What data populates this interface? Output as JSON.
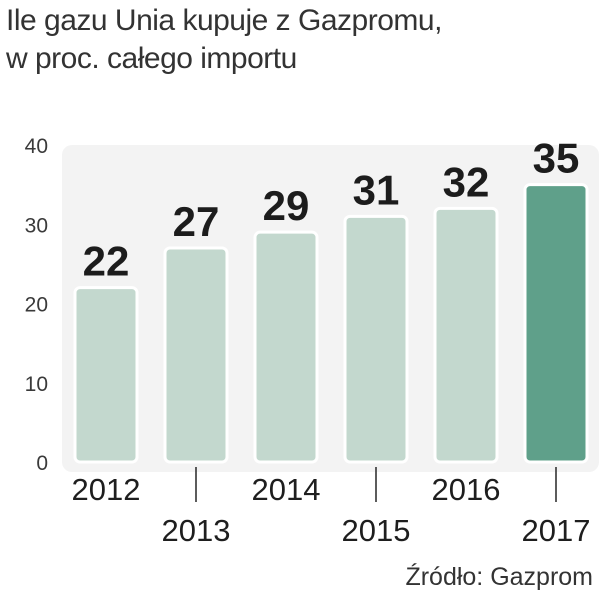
{
  "title_line1": "Ile gazu Unia kupuje z Gazpromu,",
  "title_line2": "w proc. całego importu",
  "source": "Źródło: Gazprom",
  "colors": {
    "bar": "#c3d8ce",
    "bar_highlight": "#5fa08a",
    "background_panel": "#f3f3f3"
  },
  "chart_data": {
    "type": "bar",
    "categories": [
      "2012",
      "2013",
      "2014",
      "2015",
      "2016",
      "2017"
    ],
    "values": [
      22,
      27,
      29,
      31,
      32,
      35
    ],
    "highlight": "2017",
    "ylim": [
      0,
      40
    ],
    "yticks": [
      "0",
      "10",
      "20",
      "30",
      "40"
    ],
    "xlabel": "",
    "ylabel": "",
    "grid": false,
    "data_labels": true
  }
}
